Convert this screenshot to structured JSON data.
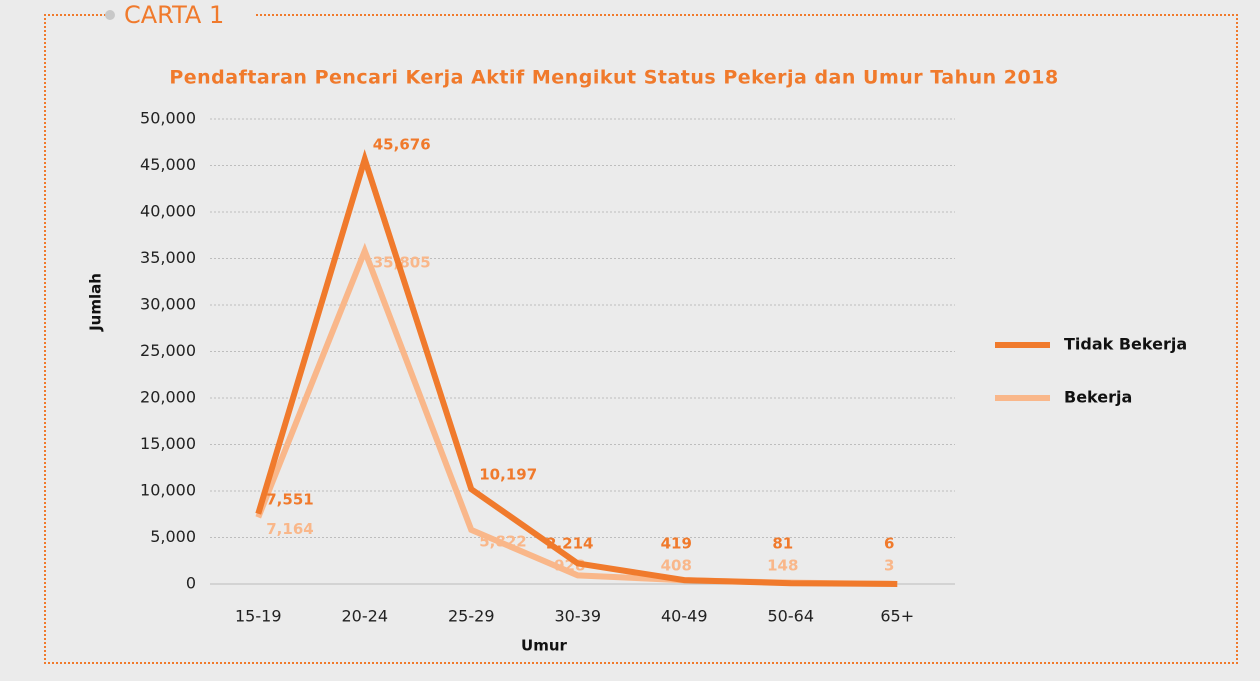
{
  "label": "CARTA 1",
  "chart_data": {
    "type": "line",
    "title": "Pendaftaran Pencari Kerja Aktif Mengikut Status Pekerja dan Umur Tahun 2018",
    "x_label": "Umur",
    "y_label": "Jumlah",
    "categories": [
      "15-19",
      "20-24",
      "25-29",
      "30-39",
      "40-49",
      "50-64",
      "65+"
    ],
    "series": [
      {
        "name": "Tidak Bekerja",
        "color": "#f07a2c",
        "values": [
          7551,
          45676,
          10197,
          2214,
          419,
          81,
          6
        ],
        "value_labels": [
          "7,551",
          "45,676",
          "10,197",
          "2,214",
          "419",
          "81",
          "6"
        ]
      },
      {
        "name": "Bekerja",
        "color": "#f9b78a",
        "values": [
          7164,
          35805,
          5822,
          928,
          408,
          148,
          3
        ],
        "value_labels": [
          "7,164",
          "35,805",
          "5,822",
          "928",
          "408",
          "148",
          "3"
        ]
      }
    ],
    "ylim": [
      0,
      50000
    ],
    "yticks": [
      0,
      {
        "value": 5000,
        "label": "5,000"
      },
      {
        "value": 10000,
        "label": "10,000"
      },
      {
        "value": 15000,
        "label": "15,000"
      },
      {
        "value": 20000,
        "label": "20,000"
      },
      {
        "value": 25000,
        "label": "25,000"
      },
      {
        "value": 30000,
        "label": "30,000"
      },
      {
        "value": 35000,
        "label": "35,000"
      },
      {
        "value": 40000,
        "label": "40,000"
      },
      {
        "value": 45000,
        "label": "45,000"
      },
      {
        "value": 50000,
        "label": "50,000"
      }
    ],
    "grid": true,
    "legend": "right"
  }
}
